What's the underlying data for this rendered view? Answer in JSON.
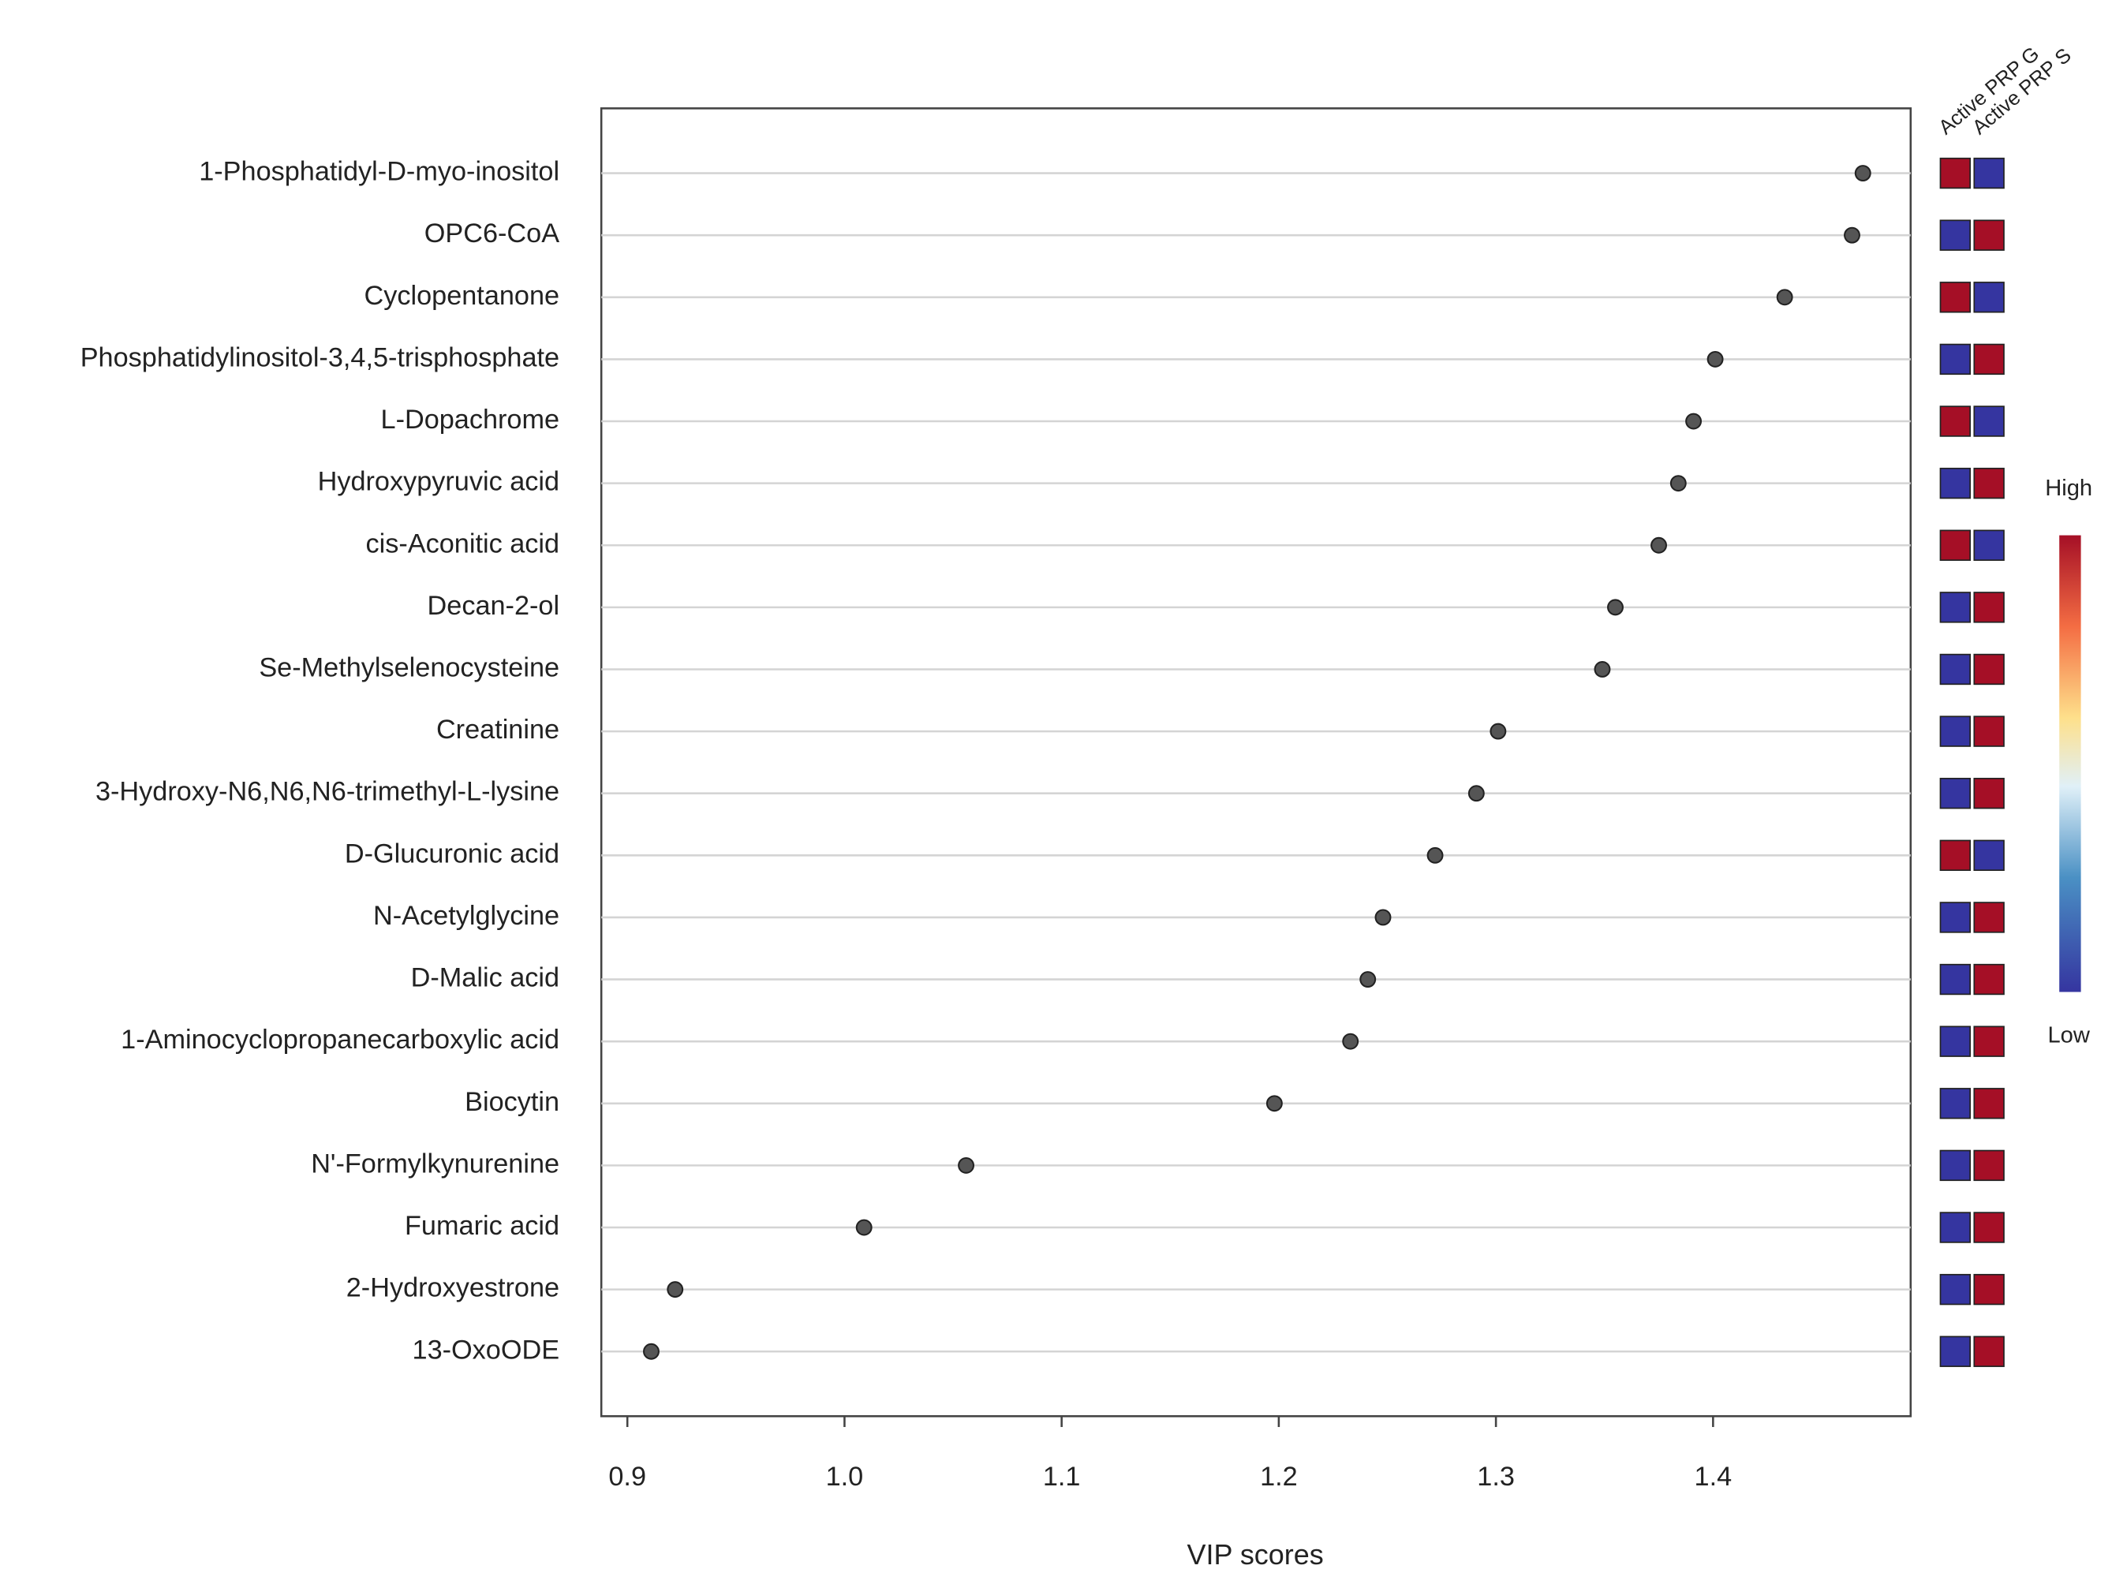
{
  "chart_data": {
    "type": "dot",
    "categories": [
      "1-Phosphatidyl-D-myo-inositol",
      "OPC6-CoA",
      "Cyclopentanone",
      "Phosphatidylinositol-3,4,5-trisphosphate",
      "L-Dopachrome",
      "Hydroxypyruvic acid",
      "cis-Aconitic acid",
      "Decan-2-ol",
      "Se-Methylselenocysteine",
      "Creatinine",
      "3-Hydroxy-N6,N6,N6-trimethyl-L-lysine",
      "D-Glucuronic acid",
      "N-Acetylglycine",
      "D-Malic acid",
      "1-Aminocyclopropanecarboxylic acid",
      "Biocytin",
      "N'-Formylkynurenine",
      "Fumaric acid",
      "2-Hydroxyestrone",
      "13-OxoODE"
    ],
    "values": [
      1.469,
      1.464,
      1.433,
      1.401,
      1.391,
      1.384,
      1.375,
      1.355,
      1.349,
      1.301,
      1.291,
      1.272,
      1.248,
      1.241,
      1.233,
      1.198,
      1.056,
      1.009,
      0.922,
      0.911
    ],
    "color": "#555555",
    "xlabel": "VIP scores",
    "xlim": [
      0.888,
      1.491
    ],
    "xticks": [
      {
        "value": 0.9,
        "label": "0.9"
      },
      {
        "value": 1.0,
        "label": "1.0"
      },
      {
        "value": 1.1,
        "label": "1.1"
      },
      {
        "value": 1.2,
        "label": "1.2"
      },
      {
        "value": 1.3,
        "label": "1.3"
      },
      {
        "value": 1.4,
        "label": "1.4"
      }
    ],
    "grid": true,
    "heatmap": {
      "columns": [
        "Active PRP G",
        "Active PRP S"
      ],
      "cells": [
        [
          "#a50f26",
          "#3535a0"
        ],
        [
          "#3535a0",
          "#a50f26"
        ],
        [
          "#a50f26",
          "#3535a0"
        ],
        [
          "#3535a0",
          "#a50f26"
        ],
        [
          "#a50f26",
          "#3535a0"
        ],
        [
          "#3535a0",
          "#a50f26"
        ],
        [
          "#a50f26",
          "#3535a0"
        ],
        [
          "#3535a0",
          "#a50f26"
        ],
        [
          "#3535a0",
          "#a50f26"
        ],
        [
          "#3535a0",
          "#a50f26"
        ],
        [
          "#3535a0",
          "#a50f26"
        ],
        [
          "#a50f26",
          "#3535a0"
        ],
        [
          "#3535a0",
          "#a50f26"
        ],
        [
          "#3535a0",
          "#a50f26"
        ],
        [
          "#3535a0",
          "#a50f26"
        ],
        [
          "#3535a0",
          "#a50f26"
        ],
        [
          "#3535a0",
          "#a50f26"
        ],
        [
          "#3535a0",
          "#a50f26"
        ],
        [
          "#3535a0",
          "#a50f26"
        ],
        [
          "#3535a0",
          "#a50f26"
        ]
      ],
      "legend_high": "High",
      "legend_low": "Low"
    }
  }
}
